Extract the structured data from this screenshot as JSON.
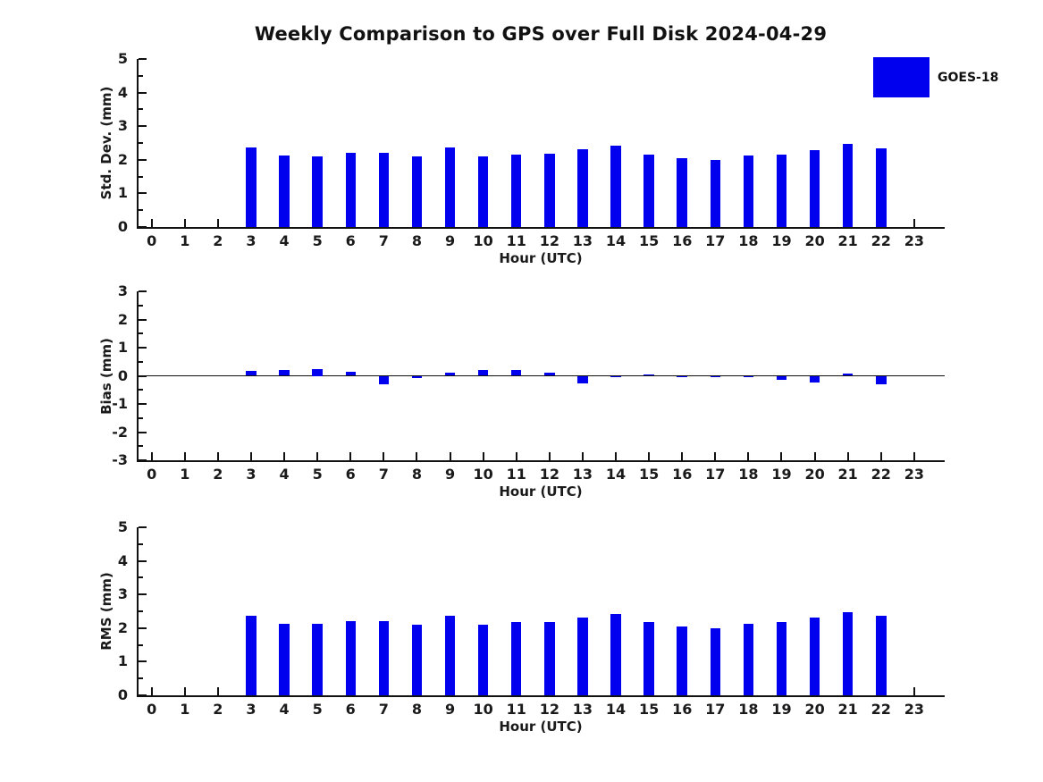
{
  "title": "Weekly Comparison to GPS over Full Disk 2024-04-29",
  "legend": {
    "label": "GOES-18",
    "color": "#0000EE"
  },
  "text_color": "#111111",
  "chart_data": [
    {
      "type": "bar",
      "panel": "std-dev",
      "ylabel": "Std. Dev. (mm)",
      "xlabel": "Hour (UTC)",
      "ylim": [
        0,
        5
      ],
      "ytick_step": 1,
      "yminor_step": 0.5,
      "xlim": [
        -0.45,
        23.92
      ],
      "grid": false,
      "zero_line": false,
      "categories": [
        0,
        1,
        2,
        3,
        4,
        5,
        6,
        7,
        8,
        9,
        10,
        11,
        12,
        13,
        14,
        15,
        16,
        17,
        18,
        19,
        20,
        21,
        22,
        23
      ],
      "series": [
        {
          "name": "GOES-18",
          "values": [
            null,
            null,
            null,
            2.37,
            2.13,
            2.11,
            2.21,
            2.21,
            2.1,
            2.38,
            2.1,
            2.16,
            2.18,
            2.31,
            2.42,
            2.16,
            2.04,
            2.0,
            2.13,
            2.16,
            2.28,
            2.47,
            2.35,
            null
          ]
        }
      ],
      "bar_color": "#0000EE"
    },
    {
      "type": "bar",
      "panel": "bias",
      "ylabel": "Bias (mm)",
      "xlabel": "Hour (UTC)",
      "ylim": [
        -3,
        3
      ],
      "ytick_step": 1,
      "yminor_step": 0.5,
      "xlim": [
        -0.45,
        23.92
      ],
      "grid": false,
      "zero_line": true,
      "categories": [
        0,
        1,
        2,
        3,
        4,
        5,
        6,
        7,
        8,
        9,
        10,
        11,
        12,
        13,
        14,
        15,
        16,
        17,
        18,
        19,
        20,
        21,
        22,
        23
      ],
      "series": [
        {
          "name": "GOES-18",
          "values": [
            null,
            null,
            null,
            0.16,
            0.2,
            0.25,
            0.13,
            -0.3,
            -0.08,
            0.12,
            0.22,
            0.2,
            0.1,
            -0.28,
            -0.03,
            0.06,
            -0.05,
            -0.01,
            -0.03,
            -0.13,
            -0.25,
            0.09,
            -0.3,
            null
          ]
        }
      ],
      "bar_color": "#0000EE"
    },
    {
      "type": "bar",
      "panel": "rms",
      "ylabel": "RMS (mm)",
      "xlabel": "Hour (UTC)",
      "ylim": [
        0,
        5
      ],
      "ytick_step": 1,
      "yminor_step": 0.5,
      "xlim": [
        -0.45,
        23.92
      ],
      "grid": false,
      "zero_line": false,
      "categories": [
        0,
        1,
        2,
        3,
        4,
        5,
        6,
        7,
        8,
        9,
        10,
        11,
        12,
        13,
        14,
        15,
        16,
        17,
        18,
        19,
        20,
        21,
        22,
        23
      ],
      "series": [
        {
          "name": "GOES-18",
          "values": [
            null,
            null,
            null,
            2.38,
            2.14,
            2.13,
            2.22,
            2.22,
            2.11,
            2.38,
            2.11,
            2.17,
            2.19,
            2.32,
            2.43,
            2.17,
            2.05,
            2.0,
            2.14,
            2.17,
            2.31,
            2.47,
            2.38,
            null
          ]
        }
      ],
      "bar_color": "#0000EE"
    }
  ]
}
